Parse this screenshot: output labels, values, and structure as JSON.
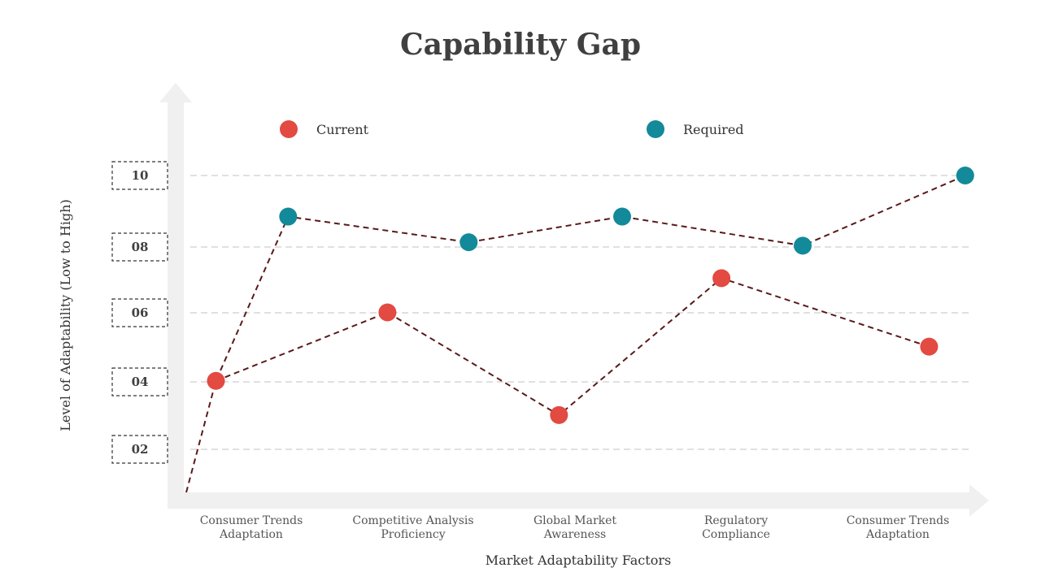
{
  "chart_data": {
    "type": "line",
    "title": "Capability Gap",
    "xlabel": "Market Adaptability Factors",
    "ylabel": "Level of Adaptability (Low to High)",
    "ylim": [
      0,
      11
    ],
    "yticks": [
      "02",
      "04",
      "06",
      "08",
      "10"
    ],
    "ytick_values": [
      2,
      4,
      6,
      8,
      10
    ],
    "grid": true,
    "legend_position": "top",
    "categories": [
      [
        "Consumer Trends",
        "Adaptation"
      ],
      [
        "Competitive Analysis",
        "Proficiency"
      ],
      [
        "Global Market",
        "Awareness"
      ],
      [
        "Regulatory",
        "Compliance"
      ],
      [
        "Consumer Trends",
        "Adaptation"
      ]
    ],
    "series": [
      {
        "name": "Current",
        "color": "#e24a42",
        "points": [
          {
            "x": 0.25,
            "y": 4.0
          },
          {
            "x": 1.2,
            "y": 6.0
          },
          {
            "x": 2.15,
            "y": 3.0
          },
          {
            "x": 3.05,
            "y": 7.0
          },
          {
            "x": 4.2,
            "y": 5.0
          }
        ]
      },
      {
        "name": "Required",
        "color": "#128a9a",
        "points": [
          {
            "x": 0.65,
            "y": 8.8
          },
          {
            "x": 1.65,
            "y": 8.05
          },
          {
            "x": 2.5,
            "y": 8.8
          },
          {
            "x": 3.5,
            "y": 7.95
          },
          {
            "x": 4.4,
            "y": 10.0
          }
        ]
      }
    ],
    "line_color": "#5a1a1a"
  }
}
